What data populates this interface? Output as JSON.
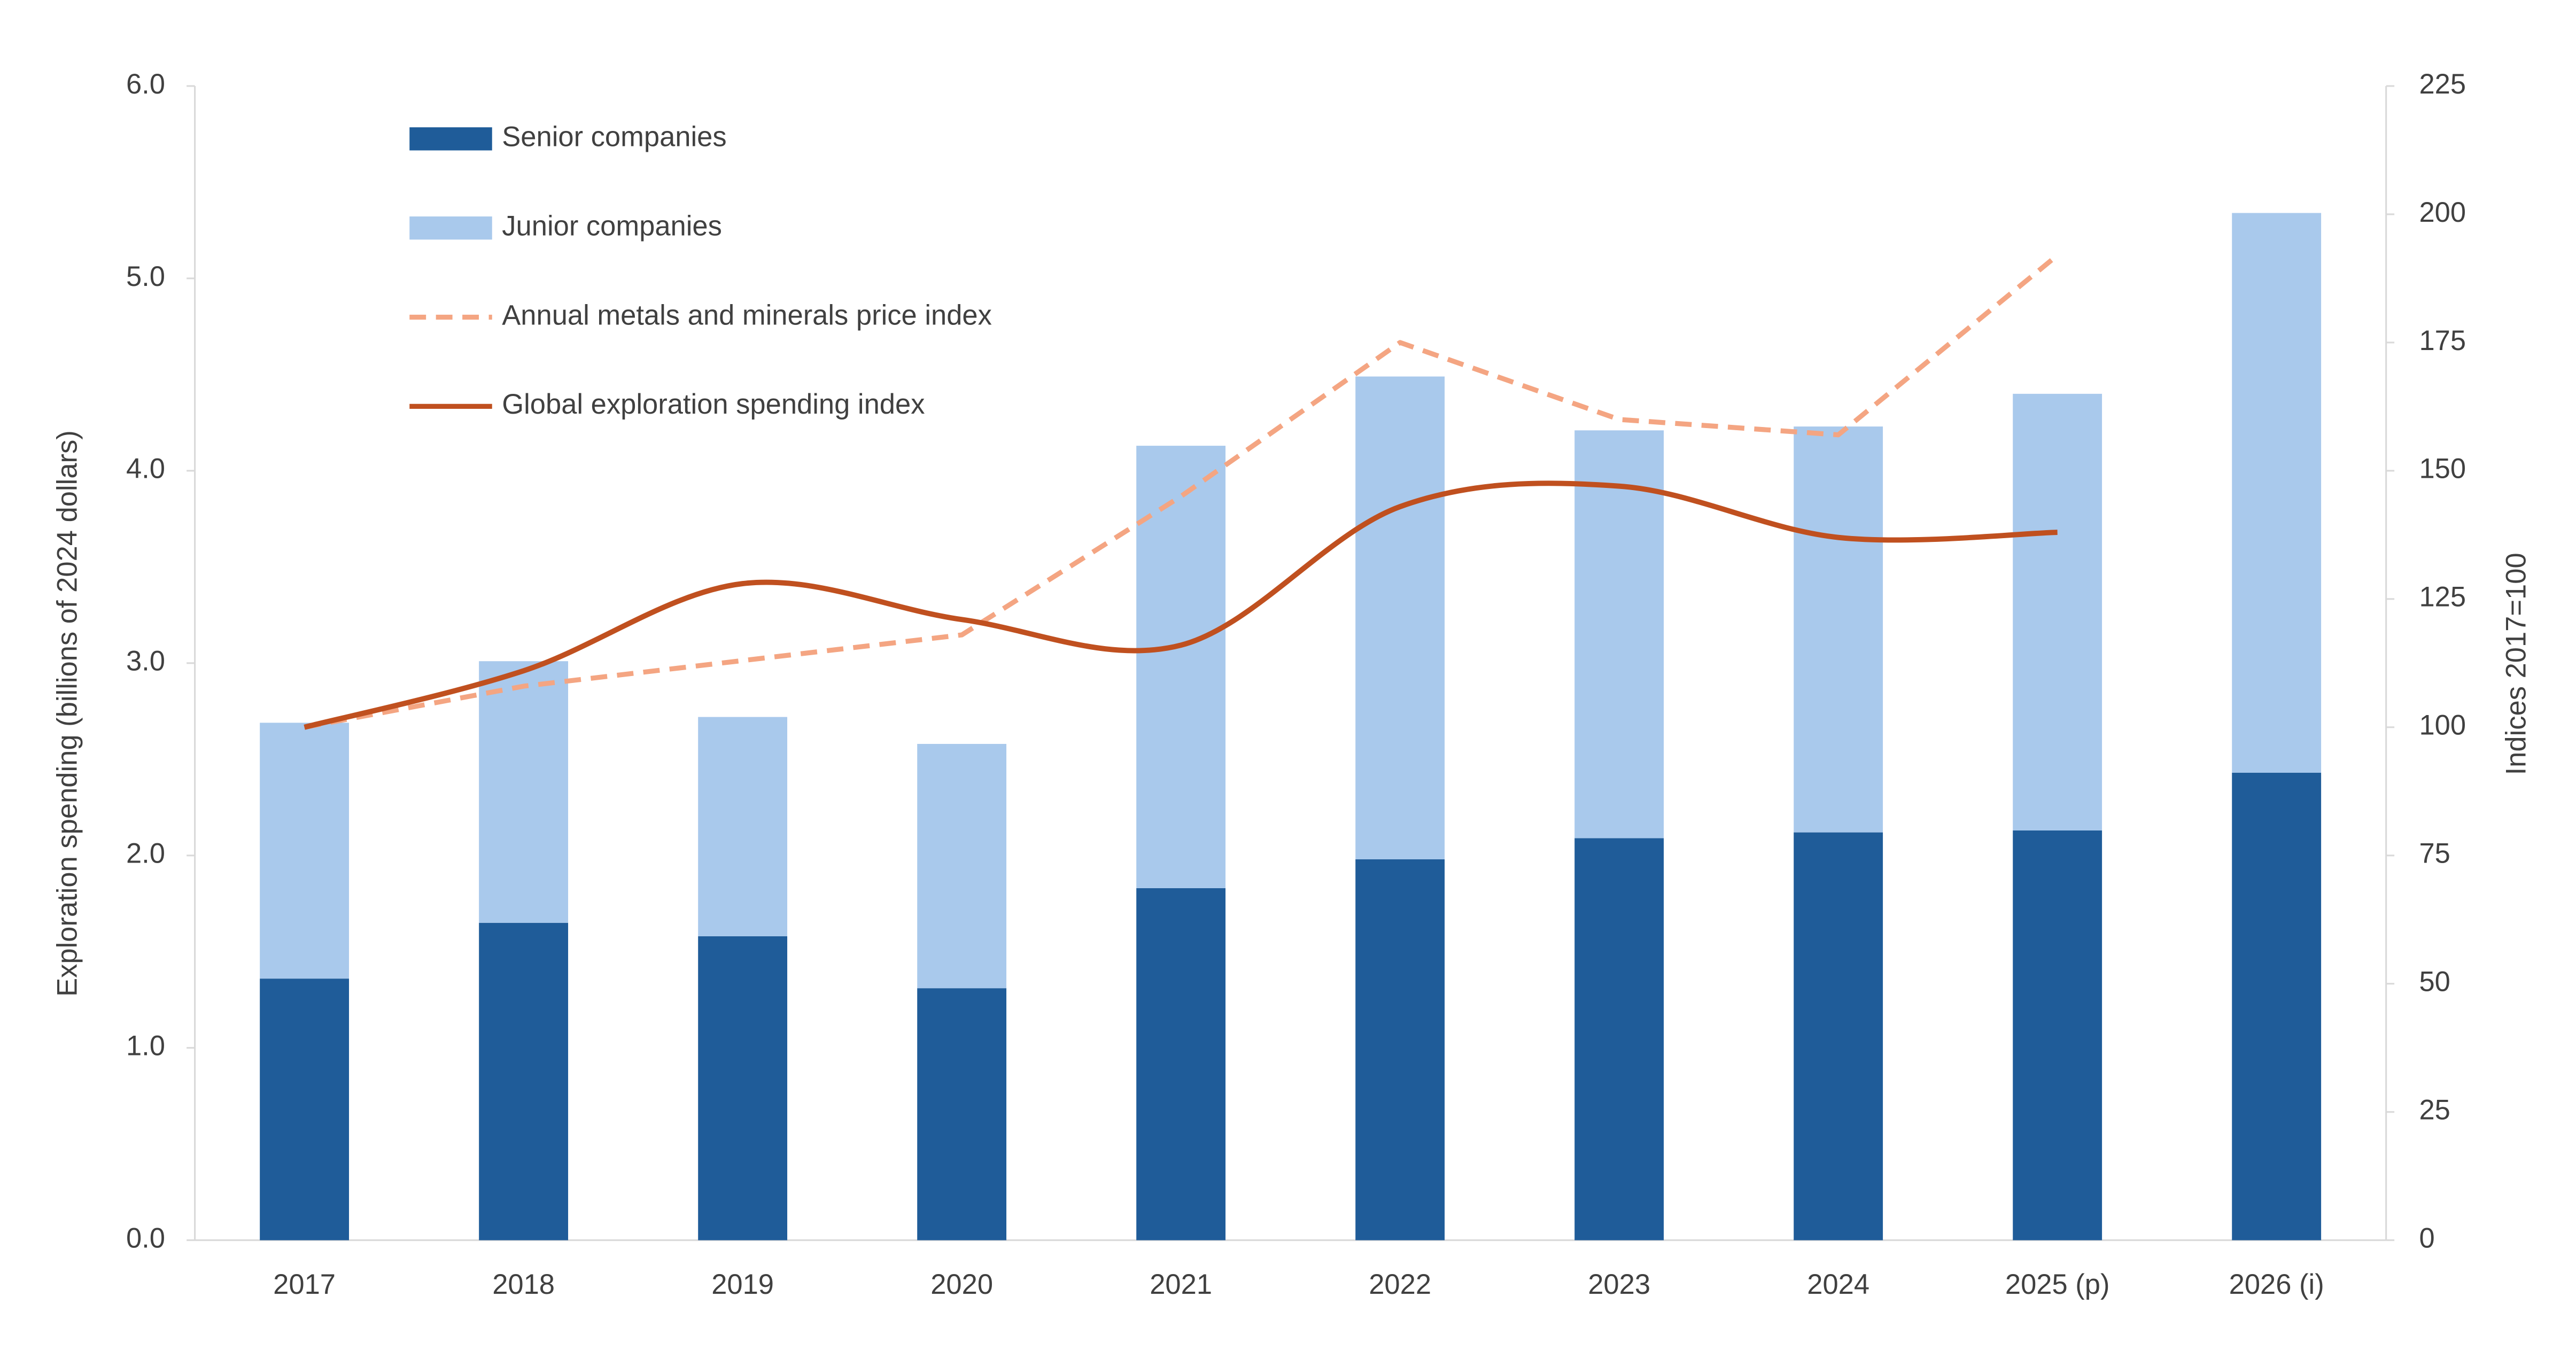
{
  "chart_data": {
    "type": "bar",
    "categories": [
      "2017",
      "2018",
      "2019",
      "2020",
      "2021",
      "2022",
      "2023",
      "2024",
      "2025 (p)",
      "2026 (i)"
    ],
    "series": [
      {
        "name": "Senior companies",
        "color": "#1f5c99",
        "values": [
          1.36,
          1.65,
          1.58,
          1.31,
          1.83,
          1.98,
          2.09,
          2.12,
          2.13,
          2.43
        ]
      },
      {
        "name": "Junior companies",
        "color": "#a9c9ec",
        "values": [
          1.33,
          1.36,
          1.14,
          1.27,
          2.3,
          2.51,
          2.12,
          2.11,
          2.27,
          2.91
        ]
      },
      {
        "name": "Annual metals and minerals price index",
        "color": "#f4a582",
        "type": "line",
        "dashed": true,
        "axis": "y2",
        "values": [
          100,
          108,
          113,
          118,
          145,
          175,
          160,
          157,
          192,
          null
        ]
      },
      {
        "name": "Global exploration spending index",
        "color": "#c0501f",
        "type": "line",
        "smooth": true,
        "axis": "y2",
        "values": [
          100,
          111,
          128,
          121,
          116,
          143,
          147,
          137,
          138,
          null
        ]
      }
    ],
    "stacked": true,
    "y_label": "Exploration spending (billions of 2024 dollars)",
    "y2_label": "Indices 2017=100",
    "ylim": [
      0,
      6
    ],
    "yticks": [
      {
        "value": 0,
        "label": "0.0"
      },
      {
        "value": 1,
        "label": "1.0"
      },
      {
        "value": 2,
        "label": "2.0"
      },
      {
        "value": 3,
        "label": "3.0"
      },
      {
        "value": 4,
        "label": "4.0"
      },
      {
        "value": 5,
        "label": "5.0"
      },
      {
        "value": 6,
        "label": "6.0"
      }
    ],
    "y2lim": [
      0,
      225
    ],
    "y2ticks": [
      0,
      25,
      50,
      75,
      100,
      125,
      150,
      175,
      200,
      225
    ],
    "legend": "upper left",
    "grid": false
  }
}
